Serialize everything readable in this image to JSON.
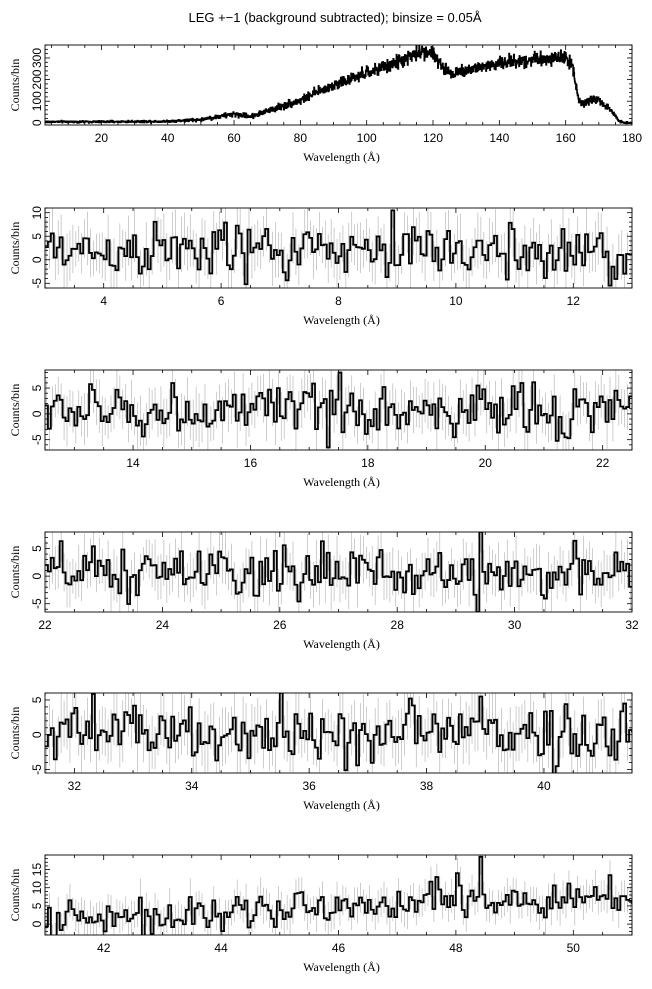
{
  "title": "LEG +−1 (background subtracted); binsize = 0.05Å",
  "chart_data": [
    {
      "type": "line",
      "style": "step-histogram with grey error bars",
      "xlabel": "Wavelength (Å)",
      "ylabel": "Counts/bin",
      "xlim": [
        3,
        180
      ],
      "ylim": [
        -10,
        360
      ],
      "xticks": [
        20,
        40,
        60,
        80,
        100,
        120,
        140,
        160,
        180
      ],
      "yticks": [
        0,
        100,
        200,
        300
      ],
      "envelope_x": [
        3,
        10,
        20,
        30,
        40,
        50,
        55,
        60,
        65,
        70,
        75,
        80,
        85,
        90,
        95,
        100,
        105,
        110,
        115,
        118,
        120,
        123,
        126,
        130,
        135,
        140,
        145,
        150,
        155,
        160,
        162,
        164,
        166,
        168,
        170,
        172,
        174,
        176,
        178,
        180
      ],
      "envelope_y": [
        5,
        5,
        5,
        6,
        7,
        15,
        28,
        40,
        30,
        55,
        80,
        105,
        140,
        175,
        200,
        230,
        255,
        285,
        320,
        335,
        315,
        250,
        230,
        245,
        260,
        275,
        285,
        295,
        300,
        300,
        270,
        95,
        90,
        110,
        105,
        75,
        50,
        10,
        0,
        0
      ],
      "error_bars": false
    },
    {
      "type": "line",
      "style": "step-histogram with grey error bars",
      "xlabel": "Wavelength (Å)",
      "ylabel": "Counts/bin",
      "xlim": [
        3,
        13
      ],
      "ylim": [
        -6,
        11
      ],
      "xticks": [
        4,
        6,
        8,
        10,
        12
      ],
      "yticks": [
        -5,
        0,
        5,
        10
      ],
      "envelope_x": [
        3,
        13
      ],
      "envelope_y": [
        2,
        1.5
      ],
      "noise_amplitude": 4,
      "error_bars": true,
      "spikes": [
        [
          8.9,
          10.5
        ],
        [
          12.6,
          -5.5
        ]
      ]
    },
    {
      "type": "line",
      "style": "step-histogram with grey error bars",
      "xlabel": "Wavelength (Å)",
      "ylabel": "Counts/bin",
      "xlim": [
        12.5,
        22.5
      ],
      "ylim": [
        -7,
        8.5
      ],
      "xticks": [
        14,
        16,
        18,
        20,
        22
      ],
      "yticks": [
        -5,
        0,
        5
      ],
      "envelope_x": [
        12.5,
        22.5
      ],
      "envelope_y": [
        0.5,
        0.5
      ],
      "noise_amplitude": 3.5,
      "error_bars": true,
      "spikes": [
        [
          17.5,
          8
        ],
        [
          17.3,
          -6.5
        ]
      ]
    },
    {
      "type": "line",
      "style": "step-histogram with grey error bars",
      "xlabel": "Wavelength (Å)",
      "ylabel": "Counts/bin",
      "xlim": [
        22,
        32
      ],
      "ylim": [
        -6.5,
        8
      ],
      "xticks": [
        22,
        24,
        26,
        28,
        30,
        32
      ],
      "yticks": [
        -5,
        0,
        5
      ],
      "envelope_x": [
        22,
        32
      ],
      "envelope_y": [
        0.5,
        0.5
      ],
      "noise_amplitude": 3.2,
      "error_bars": true,
      "spikes": [
        [
          29.4,
          8
        ],
        [
          29.35,
          -6.5
        ]
      ]
    },
    {
      "type": "line",
      "style": "step-histogram with grey error bars",
      "xlabel": "Wavelength (Å)",
      "ylabel": "Counts/bin",
      "xlim": [
        31.5,
        41.5
      ],
      "ylim": [
        -5.5,
        6
      ],
      "xticks": [
        32,
        34,
        36,
        38,
        40
      ],
      "yticks": [
        -5,
        0,
        5
      ],
      "envelope_x": [
        31.5,
        41.5
      ],
      "envelope_y": [
        0.2,
        0.2
      ],
      "noise_amplitude": 3,
      "error_bars": true,
      "spikes": [
        [
          35.5,
          6
        ],
        [
          38.9,
          5.5
        ]
      ]
    },
    {
      "type": "line",
      "style": "step-histogram with grey error bars",
      "xlabel": "Wavelength (Å)",
      "ylabel": "Counts/bin",
      "xlim": [
        41,
        51
      ],
      "ylim": [
        -3,
        19
      ],
      "xticks": [
        42,
        44,
        46,
        48,
        50
      ],
      "yticks": [
        0,
        5,
        10,
        15
      ],
      "envelope_x": [
        41,
        44,
        46,
        48,
        51
      ],
      "envelope_y": [
        1,
        2.5,
        5,
        7,
        7
      ],
      "noise_amplitude": 3.5,
      "error_bars": true,
      "spikes": [
        [
          48.4,
          18.5
        ],
        [
          48.0,
          14
        ]
      ]
    }
  ]
}
